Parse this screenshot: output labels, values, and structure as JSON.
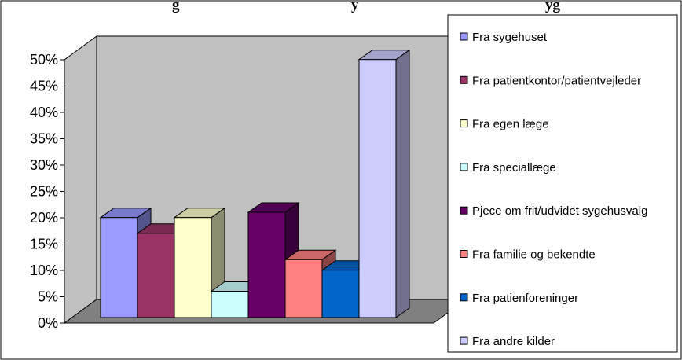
{
  "chart_data": {
    "type": "bar",
    "title": "…g… …y… …yg…",
    "title_visible": "g                                              y                                                  yg",
    "categories": [
      "Fra sygehuset",
      "Fra patientkontor/patientvejleder",
      "Fra egen læge",
      "Fra speciallæge",
      "Pjece om frit/udvidet sygehusvalg",
      "Fra familie og bekendte",
      "Fra patienforeninger",
      "Fra andre kilder"
    ],
    "values": [
      19,
      16,
      19,
      5,
      20,
      11,
      9,
      49
    ],
    "ylim": [
      0,
      50
    ],
    "yticks": [
      "0%",
      "5%",
      "10%",
      "15%",
      "20%",
      "25%",
      "30%",
      "35%",
      "40%",
      "45%",
      "50%"
    ],
    "xlabel": "",
    "ylabel": "",
    "grid": false,
    "legend_position": "right",
    "colors": [
      "#9999ff",
      "#993366",
      "#ffffcc",
      "#ccffff",
      "#660066",
      "#ff8080",
      "#0066cc",
      "#ccccff"
    ],
    "wall_color": "#c0c0c0",
    "floor_color": "#808080"
  }
}
